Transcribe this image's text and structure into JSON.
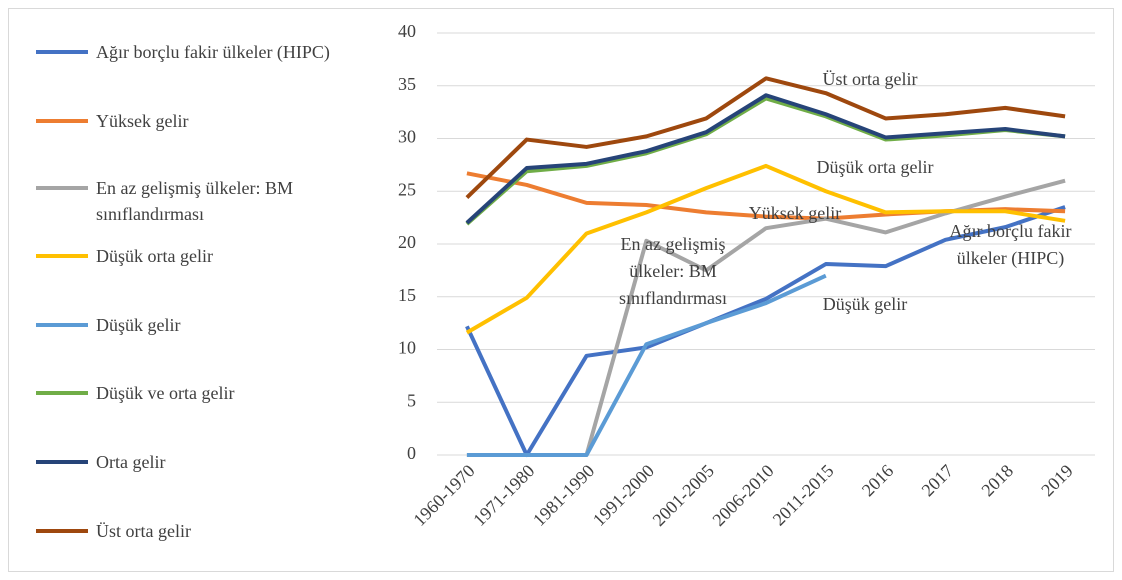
{
  "chart_data": {
    "type": "line",
    "categories": [
      "1960-1970",
      "1971-1980",
      "1981-1990",
      "1991-2000",
      "2001-2005",
      "2006-2010",
      "2011-2015",
      "2016",
      "2017",
      "2018",
      "2019"
    ],
    "series": [
      {
        "name": "Ağır borçlu fakir ülkeler (HIPC)",
        "color": "#4472c4",
        "values": [
          12.2,
          0,
          9.4,
          10.2,
          12.5,
          14.8,
          18.1,
          17.9,
          20.4,
          21.6,
          23.5
        ]
      },
      {
        "name": "Yüksek gelir",
        "color": "#ed7d31",
        "values": [
          26.7,
          25.6,
          23.9,
          23.7,
          23.0,
          22.6,
          22.4,
          22.8,
          23.1,
          23.3,
          23.1
        ]
      },
      {
        "name": "En az gelişmiş ülkeler: BM sınıflandırması",
        "color": "#a5a5a5",
        "values": [
          0,
          0,
          0,
          20.3,
          17.5,
          21.5,
          22.4,
          21.1,
          22.9,
          24.5,
          26.0
        ]
      },
      {
        "name": "Düşük orta gelir",
        "color": "#ffc000",
        "values": [
          11.6,
          14.9,
          21.0,
          23.0,
          25.3,
          27.4,
          25.0,
          23.0,
          23.1,
          23.1,
          22.2
        ]
      },
      {
        "name": "Düşük gelir",
        "color": "#5b9bd5",
        "values": [
          0,
          0,
          0,
          10.5,
          12.5,
          14.4,
          17.0,
          null,
          null,
          null,
          null
        ]
      },
      {
        "name": "Düşük ve orta gelir",
        "color": "#70ad47",
        "values": [
          21.9,
          26.9,
          27.4,
          28.6,
          30.4,
          33.8,
          32.1,
          29.9,
          30.3,
          30.8,
          30.2
        ]
      },
      {
        "name": "Orta gelir",
        "color": "#264478",
        "values": [
          22.0,
          27.2,
          27.6,
          28.8,
          30.6,
          34.1,
          32.3,
          30.1,
          30.5,
          30.9,
          30.2
        ]
      },
      {
        "name": "Üst orta gelir",
        "color": "#9e480e",
        "values": [
          24.4,
          29.9,
          29.2,
          30.2,
          31.9,
          35.7,
          34.3,
          31.9,
          32.3,
          32.9,
          32.1
        ]
      }
    ],
    "annotations": [
      "Üst orta gelir",
      "Düşük orta gelir",
      "Yüksek gelir",
      "En az gelişmiş ülkeler: BM sınıflandırması",
      "Ağır borçlu fakir ülkeler (HIPC)",
      "Düşük gelir"
    ],
    "ylim": [
      0,
      40
    ],
    "yticks": [
      0,
      5,
      10,
      15,
      20,
      25,
      30,
      35,
      40
    ],
    "grid": true
  }
}
